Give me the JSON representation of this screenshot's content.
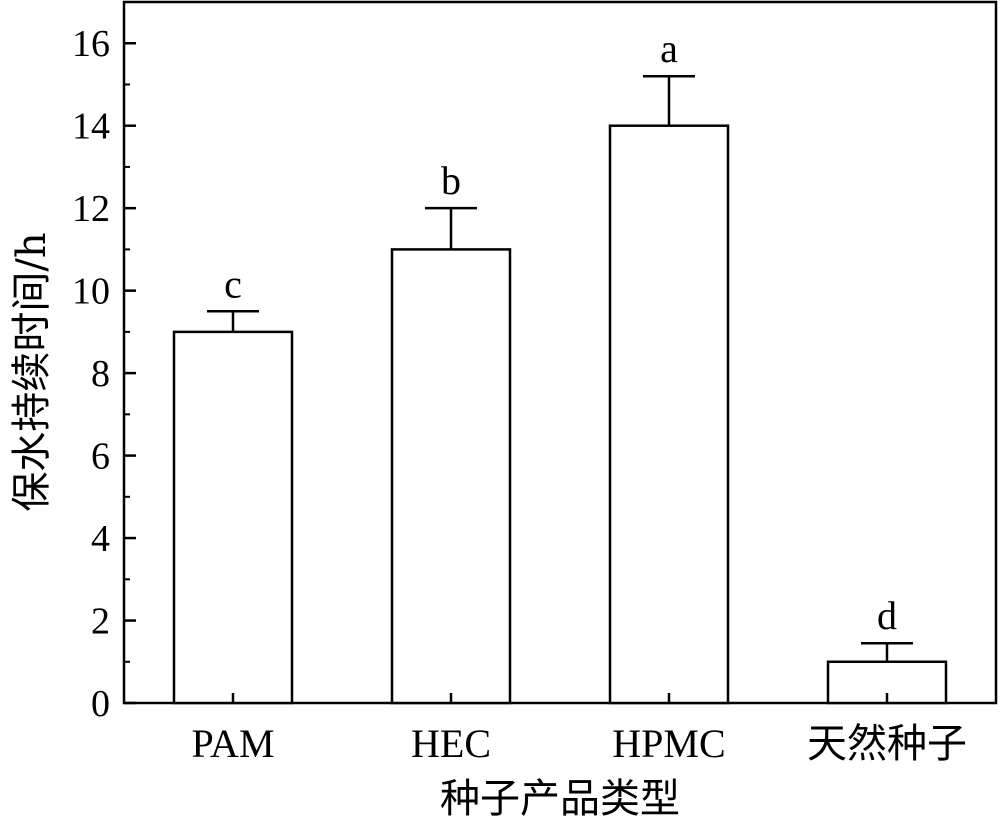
{
  "chart_data": {
    "type": "bar",
    "categories": [
      "PAM",
      "HEC",
      "HPMC",
      "天然种子"
    ],
    "values": [
      9,
      11,
      14,
      1
    ],
    "errors": [
      0.5,
      1.0,
      1.2,
      0.45
    ],
    "significance": [
      "c",
      "b",
      "a",
      "d"
    ],
    "xlabel": "种子产品类型",
    "ylabel": "保水持续时间/h",
    "ylim": [
      0,
      17
    ],
    "yticks": [
      0,
      2,
      4,
      6,
      8,
      10,
      12,
      14,
      16
    ],
    "grid": false,
    "bar_fill": "#ffffff",
    "bar_stroke": "#000000"
  }
}
